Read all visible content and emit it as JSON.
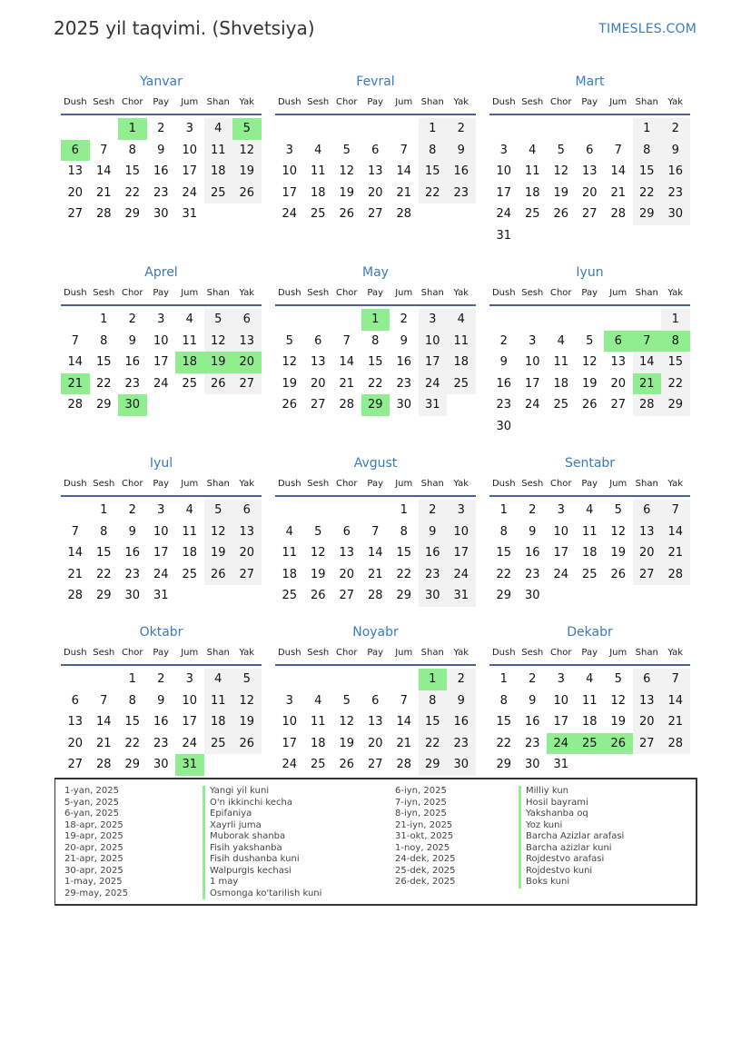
{
  "header": {
    "title": "2025 yil taqvimi. (Shvetsiya)",
    "brand": "TIMESLES.COM"
  },
  "year": 2025,
  "weekdays": [
    "Dush",
    "Sesh",
    "Chor",
    "Pay",
    "Jum",
    "Shan",
    "Yak"
  ],
  "colors": {
    "accent": "#3a7bbf",
    "holiday": "#90ee90",
    "weekend": "#f2f2f2",
    "rule": "#4a6294"
  },
  "months": [
    {
      "name": "Yanvar",
      "holidays": [
        1,
        5,
        6
      ]
    },
    {
      "name": "Fevral",
      "holidays": []
    },
    {
      "name": "Mart",
      "holidays": []
    },
    {
      "name": "Aprel",
      "holidays": [
        18,
        19,
        20,
        21,
        30
      ]
    },
    {
      "name": "May",
      "holidays": [
        1,
        29
      ]
    },
    {
      "name": "Iyun",
      "holidays": [
        6,
        7,
        8,
        21
      ]
    },
    {
      "name": "Iyul",
      "holidays": []
    },
    {
      "name": "Avgust",
      "holidays": []
    },
    {
      "name": "Sentabr",
      "holidays": []
    },
    {
      "name": "Oktabr",
      "holidays": [
        31
      ]
    },
    {
      "name": "Noyabr",
      "holidays": [
        1
      ]
    },
    {
      "name": "Dekabr",
      "holidays": [
        24,
        25,
        26
      ]
    }
  ],
  "holiday_list": [
    {
      "date": "1-yan, 2025",
      "name": "Yangi yil kuni"
    },
    {
      "date": "5-yan, 2025",
      "name": "O'n ikkinchi kecha"
    },
    {
      "date": "6-yan, 2025",
      "name": "Epifaniya"
    },
    {
      "date": "18-apr, 2025",
      "name": "Xayrli juma"
    },
    {
      "date": "19-apr, 2025",
      "name": "Muborak shanba"
    },
    {
      "date": "20-apr, 2025",
      "name": "Fisih yakshanba"
    },
    {
      "date": "21-apr, 2025",
      "name": "Fisih dushanba kuni"
    },
    {
      "date": "30-apr, 2025",
      "name": "Walpurgis kechasi"
    },
    {
      "date": "1-may, 2025",
      "name": "1 may"
    },
    {
      "date": "29-may, 2025",
      "name": "Osmonga ko'tarilish kuni"
    },
    {
      "date": "6-iyn, 2025",
      "name": "Milliy kun"
    },
    {
      "date": "7-iyn, 2025",
      "name": "Hosil bayrami"
    },
    {
      "date": "8-iyn, 2025",
      "name": "Yakshanba oq"
    },
    {
      "date": "21-iyn, 2025",
      "name": "Yoz kuni"
    },
    {
      "date": "31-okt, 2025",
      "name": "Barcha Azizlar arafasi"
    },
    {
      "date": "1-noy, 2025",
      "name": "Barcha azizlar kuni"
    },
    {
      "date": "24-dek, 2025",
      "name": "Rojdestvo arafasi"
    },
    {
      "date": "25-dek, 2025",
      "name": "Rojdestvo kuni"
    },
    {
      "date": "26-dek, 2025",
      "name": "Boks kuni"
    }
  ]
}
